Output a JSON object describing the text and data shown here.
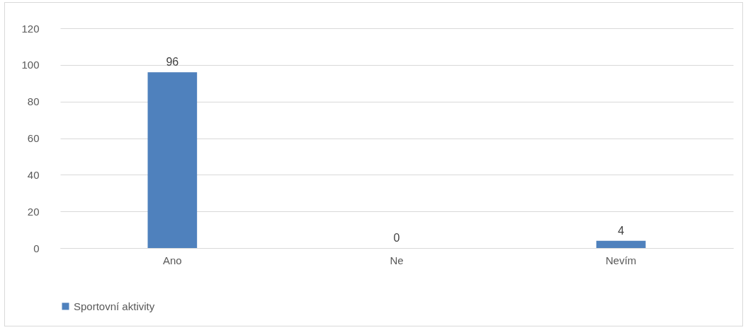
{
  "chart_data": {
    "type": "bar",
    "categories": [
      "Ano",
      "Ne",
      "Nevím"
    ],
    "series": [
      {
        "name": "Sportovní aktivity",
        "color": "#4f81bd",
        "values": [
          96,
          0,
          4
        ]
      }
    ],
    "ylim": [
      0,
      120
    ],
    "yticks": [
      0,
      20,
      40,
      60,
      80,
      100,
      120
    ],
    "grid": "y",
    "legend": "bottom",
    "data_labels": true
  }
}
